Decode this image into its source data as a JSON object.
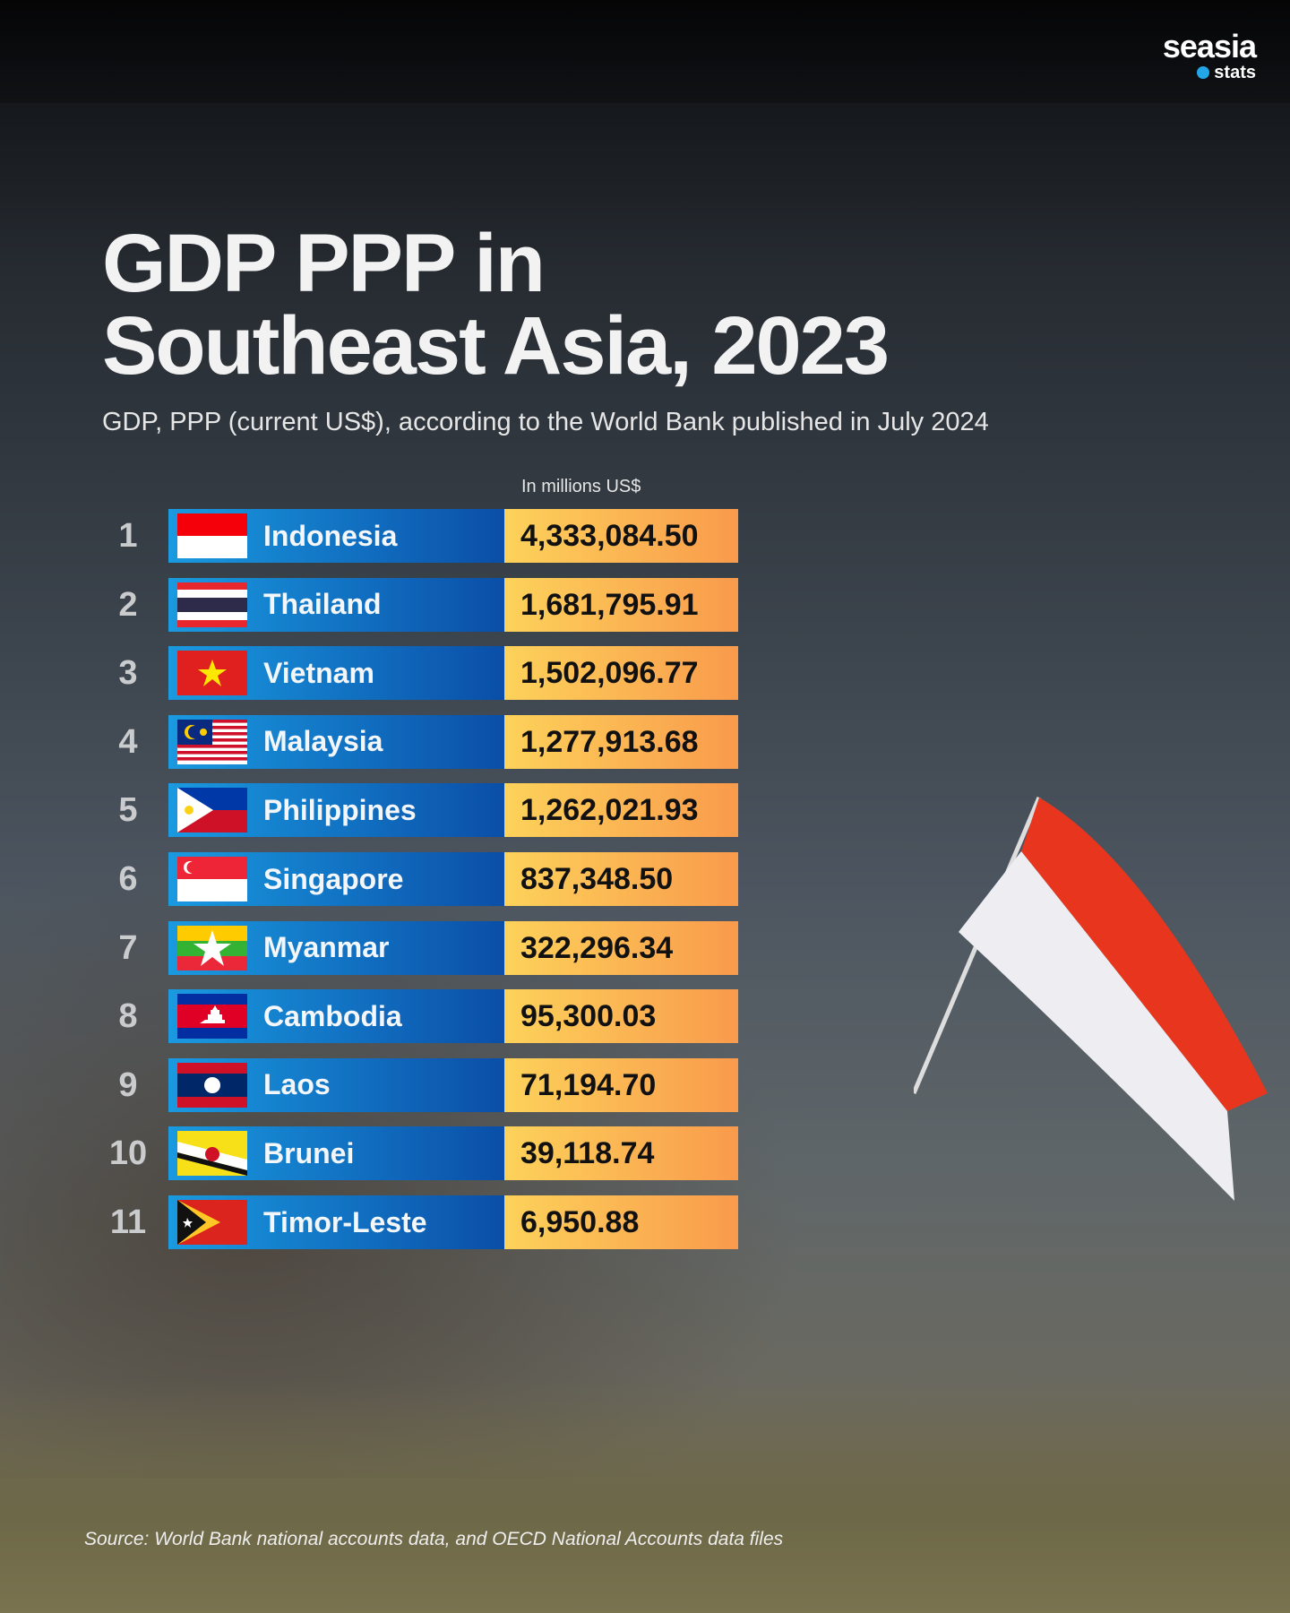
{
  "brand": {
    "name": "seasia",
    "sub": "stats"
  },
  "title_line1": "GDP PPP in",
  "title_line2": "Southeast Asia, 2023",
  "subtitle": "GDP, PPP (current US$), according to the World Bank published in July 2024",
  "unit": "In millions US$",
  "rows": [
    {
      "rank": "1",
      "country": "Indonesia",
      "value": "4,333,084.50",
      "flag": "indonesia-flag"
    },
    {
      "rank": "2",
      "country": "Thailand",
      "value": "1,681,795.91",
      "flag": "thailand-flag"
    },
    {
      "rank": "3",
      "country": "Vietnam",
      "value": "1,502,096.77",
      "flag": "vietnam-flag"
    },
    {
      "rank": "4",
      "country": "Malaysia",
      "value": "1,277,913.68",
      "flag": "malaysia-flag"
    },
    {
      "rank": "5",
      "country": "Philippines",
      "value": "1,262,021.93",
      "flag": "philippines-flag"
    },
    {
      "rank": "6",
      "country": "Singapore",
      "value": "837,348.50",
      "flag": "singapore-flag"
    },
    {
      "rank": "7",
      "country": "Myanmar",
      "value": "322,296.34",
      "flag": "myanmar-flag"
    },
    {
      "rank": "8",
      "country": "Cambodia",
      "value": "95,300.03",
      "flag": "cambodia-flag"
    },
    {
      "rank": "9",
      "country": "Laos",
      "value": "71,194.70",
      "flag": "laos-flag"
    },
    {
      "rank": "10",
      "country": "Brunei",
      "value": "39,118.74",
      "flag": "brunei-flag"
    },
    {
      "rank": "11",
      "country": "Timor-Leste",
      "value": "6,950.88",
      "flag": "timor-leste-flag"
    }
  ],
  "source": "Source: World Bank national accounts data, and OECD National Accounts data files",
  "colors": {
    "name_bar_start": "#1a9ae0",
    "name_bar_end": "#0a4ea8",
    "value_start": "#fdd25a",
    "value_end": "#f99a4c"
  }
}
